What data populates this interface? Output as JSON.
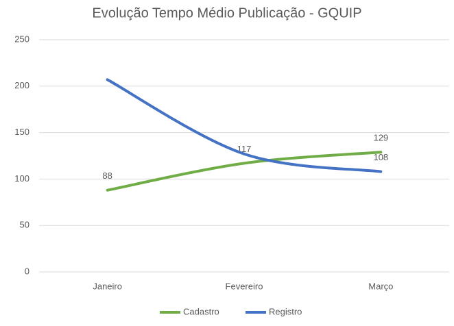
{
  "chart_data": {
    "type": "line",
    "title": "Evolução Tempo Médio Publicação - GQUIP",
    "categories": [
      "Janeiro",
      "Fevereiro",
      "Março"
    ],
    "series": [
      {
        "name": "Cadastro",
        "color": "#70ad47",
        "values": [
          88,
          117,
          129
        ],
        "value_labels": [
          "88",
          "117",
          "129"
        ]
      },
      {
        "name": "Registro",
        "color": "#4472c4",
        "values": [
          207,
          127,
          108
        ],
        "value_labels": [
          null,
          null,
          "108"
        ]
      }
    ],
    "ylim": [
      0,
      250
    ],
    "yticks": [
      0,
      50,
      100,
      150,
      200,
      250
    ],
    "grid": true,
    "legend": "bottom"
  }
}
